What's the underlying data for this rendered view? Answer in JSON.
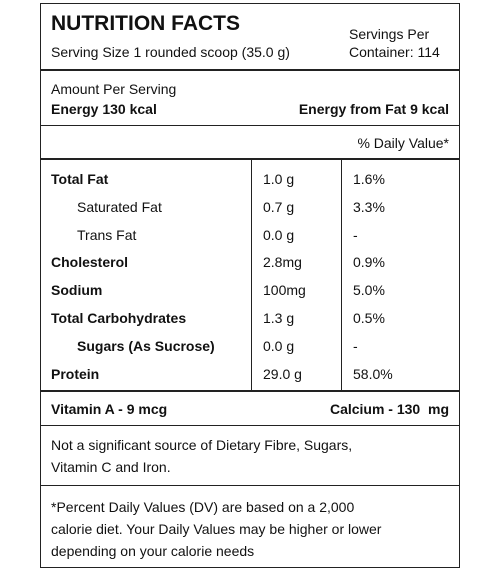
{
  "header": {
    "title": "NUTRITION FACTS",
    "serving_size": "Serving Size 1 rounded scoop (35.0 g)",
    "servings_per_container": [
      "Servings Per",
      "Container: 114"
    ]
  },
  "energy": {
    "amount_per_serving": "Amount Per Serving",
    "energy": "Energy 130 kcal",
    "energy_from_fat": "Energy from Fat 9 kcal"
  },
  "daily_value_header": "% Daily Value*",
  "table": {
    "rows": [
      [
        "Total Fat",
        "1.0 g",
        "1.6%"
      ],
      [
        "Saturated Fat",
        "0.7 g",
        "3.3%"
      ],
      [
        "Trans Fat",
        "0.0 g",
        "-"
      ],
      [
        "Cholesterol",
        "2.8mg",
        "0.9%"
      ],
      [
        "Sodium",
        "100mg",
        "5.0%"
      ],
      [
        "Total Carbohydrates",
        "1.3 g",
        "0.5%"
      ],
      [
        "Sugars (As Sucrose)",
        "0.0 g",
        "-"
      ],
      [
        "Protein",
        "29.0 g",
        "58.0%"
      ]
    ]
  },
  "vitamins": {
    "vitamin_a": "Vitamin A - 9 mcg",
    "calcium": "Calcium - 130  mg"
  },
  "note": [
    "Not a significant source of Dietary Fibre, Sugars,",
    "Vitamin C and Iron."
  ],
  "footnote": [
    "*Percent Daily Values (DV) are based on a 2,000",
    "calorie diet. Your Daily Values may be higher or lower",
    "depending on your calorie needs"
  ]
}
